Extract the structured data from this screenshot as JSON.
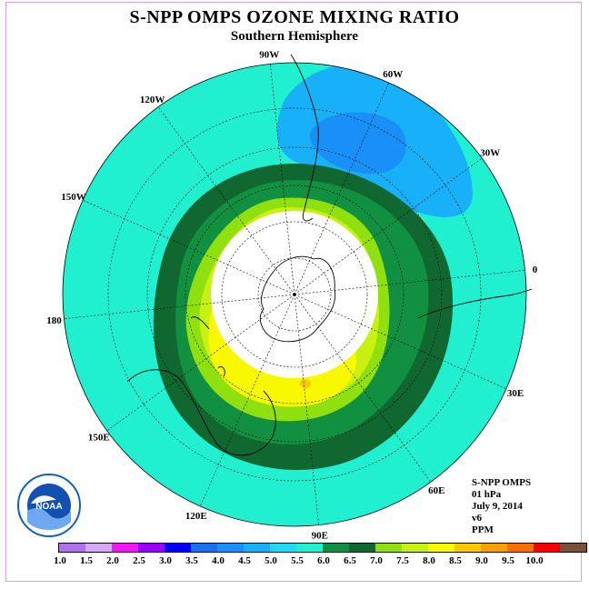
{
  "header": {
    "title": "S-NPP OMPS OZONE MIXING RATIO",
    "subtitle": "Southern Hemisphere"
  },
  "longitude_labels": [
    "90W",
    "60W",
    "30W",
    "0",
    "30E",
    "60E",
    "90E",
    "120E",
    "150E",
    "180",
    "150W",
    "120W"
  ],
  "info": {
    "instrument": "S-NPP OMPS",
    "level": "01 hPa",
    "date": "July 9, 2014",
    "version": "v6",
    "units": "PPM"
  },
  "logo": {
    "text": "NOAA",
    "icon": "noaa-logo-icon"
  },
  "colorbar": {
    "colors": [
      "#b070f0",
      "#d8a8f8",
      "#f018f0",
      "#9800f8",
      "#0000f0",
      "#1870f0",
      "#1890f8",
      "#18b0f8",
      "#20d8f8",
      "#20f0d0",
      "#109040",
      "#106830",
      "#90e010",
      "#c8f010",
      "#f8f800",
      "#f8c800",
      "#f8a000",
      "#f87000",
      "#f80000",
      "#7a5038"
    ],
    "ticks": [
      "1.0",
      "1.5",
      "2.0",
      "2.5",
      "3.0",
      "3.5",
      "4.0",
      "4.5",
      "5.0",
      "5.5",
      "6.0",
      "6.5",
      "7.0",
      "7.5",
      "8.0",
      "8.5",
      "9.0",
      "9.5",
      "10.0"
    ]
  },
  "map_colors": {
    "background": "#20f0d0",
    "ring_dark": "#106830",
    "ring_mid": "#109040",
    "ring_light": "#90e010",
    "ring_yellowgreen": "#c8f010",
    "core_yellow": "#f8f800",
    "peak_orange": "#f8c800",
    "low_light_blue": "#18b0f8",
    "low_blue": "#1890f8",
    "polar_night": "#ffffff"
  }
}
